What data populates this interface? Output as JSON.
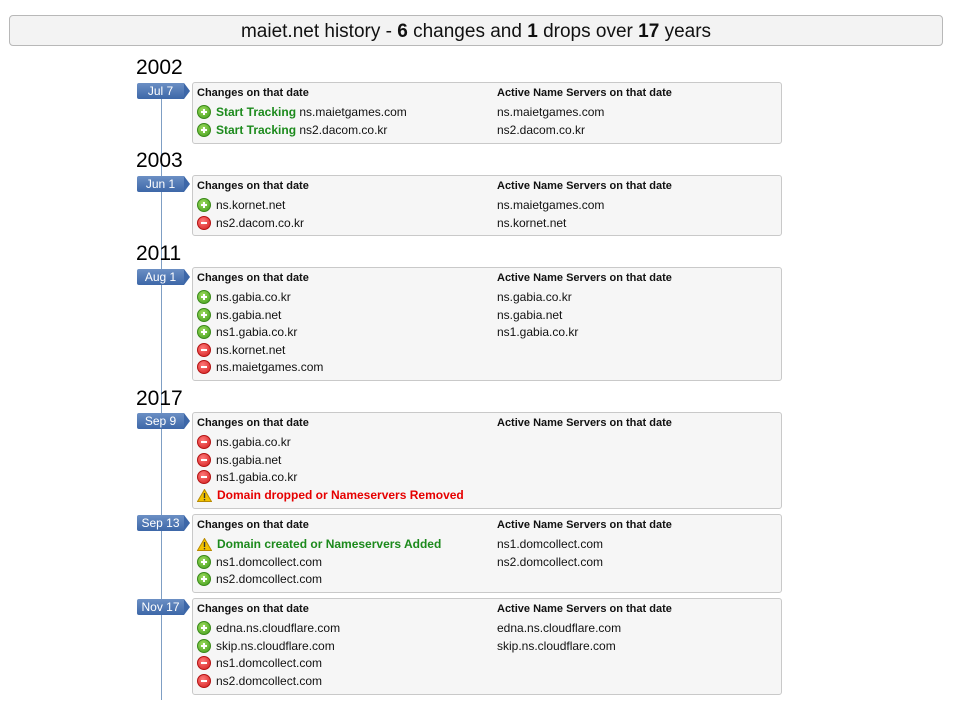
{
  "header": {
    "domain": "maiet.net",
    "text_history": "history - ",
    "changes": "6",
    "text_changes_and": "changes and",
    "drops": "1",
    "text_drops_over": "drops over",
    "years": "17",
    "text_years": "years"
  },
  "labels": {
    "changes_header": "Changes on that date",
    "active_header": "Active Name Servers on that date"
  },
  "years": [
    "2002",
    "2003",
    "2011",
    "2017"
  ],
  "entries": [
    {
      "date": "Jul 7",
      "changes": [
        {
          "icon": "add",
          "prefix": "Start Tracking",
          "text": "ns.maietgames.com"
        },
        {
          "icon": "add",
          "prefix": "Start Tracking",
          "text": "ns2.dacom.co.kr"
        }
      ],
      "active": [
        "ns.maietgames.com",
        "ns2.dacom.co.kr"
      ]
    },
    {
      "date": "Jun 1",
      "changes": [
        {
          "icon": "add",
          "text": "ns.kornet.net"
        },
        {
          "icon": "remove",
          "text": "ns2.dacom.co.kr"
        }
      ],
      "active": [
        "ns.maietgames.com",
        "ns.kornet.net"
      ]
    },
    {
      "date": "Aug 1",
      "changes": [
        {
          "icon": "add",
          "text": "ns.gabia.co.kr"
        },
        {
          "icon": "add",
          "text": "ns.gabia.net"
        },
        {
          "icon": "add",
          "text": "ns1.gabia.co.kr"
        },
        {
          "icon": "remove",
          "text": "ns.kornet.net"
        },
        {
          "icon": "remove",
          "text": "ns.maietgames.com"
        }
      ],
      "active": [
        "ns.gabia.co.kr",
        "ns.gabia.net",
        "ns1.gabia.co.kr"
      ]
    },
    {
      "date": "Sep 9",
      "changes": [
        {
          "icon": "remove",
          "text": "ns.gabia.co.kr"
        },
        {
          "icon": "remove",
          "text": "ns.gabia.net"
        },
        {
          "icon": "remove",
          "text": "ns1.gabia.co.kr"
        },
        {
          "icon": "warn",
          "alert": "Domain dropped or Nameservers Removed",
          "alert_color": "red"
        }
      ],
      "active": []
    },
    {
      "date": "Sep 13",
      "changes": [
        {
          "icon": "warn",
          "alert": "Domain created or Nameservers Added",
          "alert_color": "green"
        },
        {
          "icon": "add",
          "text": "ns1.domcollect.com"
        },
        {
          "icon": "add",
          "text": "ns2.domcollect.com"
        }
      ],
      "active": [
        "ns1.domcollect.com",
        "ns2.domcollect.com"
      ]
    },
    {
      "date": "Nov 17",
      "changes": [
        {
          "icon": "add",
          "text": "edna.ns.cloudflare.com"
        },
        {
          "icon": "add",
          "text": "skip.ns.cloudflare.com"
        },
        {
          "icon": "remove",
          "text": "ns1.domcollect.com"
        },
        {
          "icon": "remove",
          "text": "ns2.domcollect.com"
        }
      ],
      "active": [
        "edna.ns.cloudflare.com",
        "skip.ns.cloudflare.com"
      ]
    }
  ],
  "colors": {
    "add": "#3d9a18",
    "remove": "#d21b1b",
    "warn": "#f2c200",
    "date_tag": "#3d67a8",
    "green_text": "#1c8a1c",
    "red_text": "#e60000"
  }
}
